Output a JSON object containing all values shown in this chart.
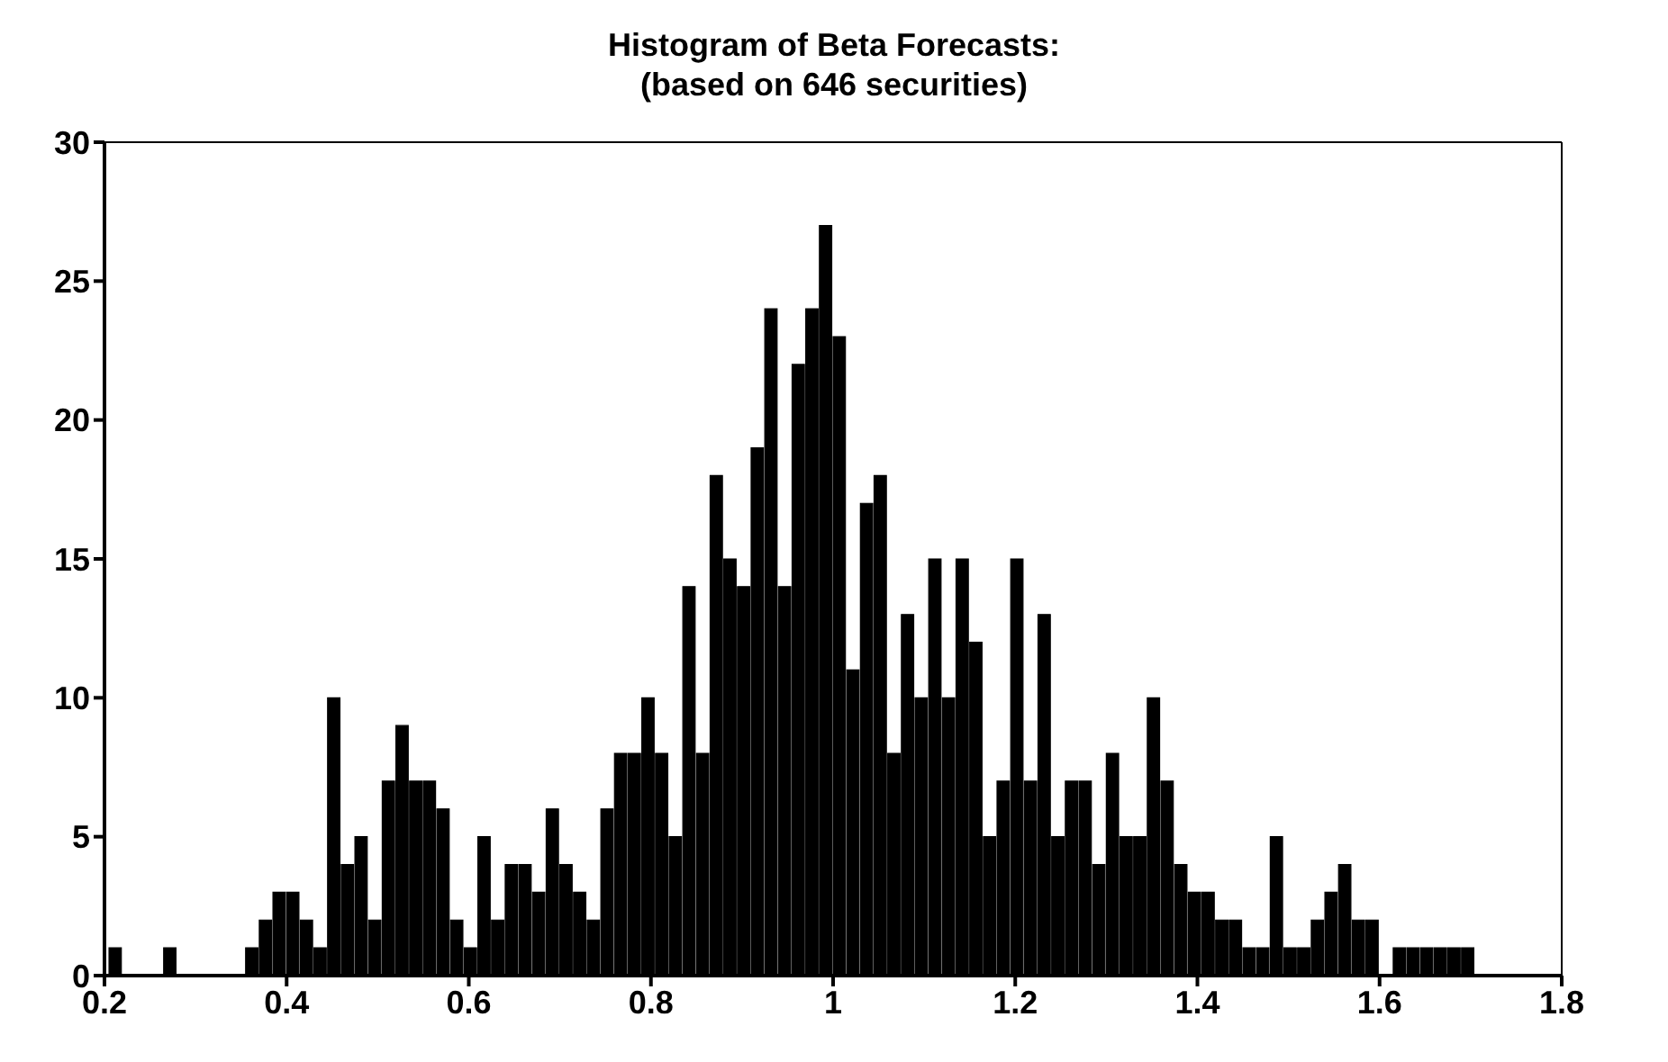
{
  "chart_data": {
    "type": "histogram",
    "title": "Histogram of Beta Forecasts:",
    "subtitle": "(based on 646 securities)",
    "bins": [
      0.205,
      0.22,
      0.235,
      0.25,
      0.265,
      0.28,
      0.295,
      0.31,
      0.325,
      0.34,
      0.355,
      0.37,
      0.385,
      0.4,
      0.415,
      0.43,
      0.445,
      0.46,
      0.475,
      0.49,
      0.505,
      0.52,
      0.535,
      0.55,
      0.565,
      0.58,
      0.595,
      0.61,
      0.625,
      0.64,
      0.655,
      0.67,
      0.685,
      0.7,
      0.715,
      0.73,
      0.745,
      0.76,
      0.775,
      0.79,
      0.805,
      0.82,
      0.835,
      0.85,
      0.865,
      0.88,
      0.895,
      0.91,
      0.925,
      0.94,
      0.955,
      0.97,
      0.985,
      1.0,
      1.015,
      1.03,
      1.045,
      1.06,
      1.075,
      1.09,
      1.105,
      1.12,
      1.135,
      1.15,
      1.165,
      1.18,
      1.195,
      1.21,
      1.225,
      1.24,
      1.255,
      1.27,
      1.285,
      1.3,
      1.315,
      1.33,
      1.345,
      1.36,
      1.375,
      1.39,
      1.405,
      1.42,
      1.435,
      1.45,
      1.465,
      1.48,
      1.495,
      1.51,
      1.525,
      1.54,
      1.555,
      1.57,
      1.585,
      1.6,
      1.615,
      1.63,
      1.645,
      1.66,
      1.675,
      1.69,
      1.705
    ],
    "values": [
      1,
      0,
      0,
      0,
      1,
      0,
      0,
      0,
      0,
      0,
      1,
      2,
      3,
      3,
      2,
      1,
      10,
      4,
      5,
      2,
      7,
      9,
      7,
      7,
      6,
      2,
      1,
      5,
      2,
      4,
      4,
      3,
      6,
      4,
      3,
      2,
      6,
      8,
      8,
      10,
      8,
      5,
      14,
      8,
      18,
      15,
      14,
      19,
      24,
      14,
      22,
      24,
      27,
      23,
      11,
      17,
      18,
      8,
      13,
      10,
      15,
      10,
      15,
      12,
      5,
      7,
      15,
      7,
      13,
      5,
      7,
      7,
      4,
      8,
      5,
      5,
      10,
      7,
      4,
      3,
      3,
      2,
      2,
      1,
      1,
      5,
      1,
      1,
      2,
      3,
      4,
      2,
      2,
      0,
      1,
      1,
      1,
      1,
      1,
      1
    ],
    "color": "#000000",
    "xlim": [
      0.2,
      1.8
    ],
    "xticks": [
      0.2,
      0.4,
      0.6,
      0.8,
      1,
      1.2,
      1.4,
      1.6,
      1.8
    ],
    "ylim": [
      0,
      30
    ],
    "yticks": [
      0,
      5,
      10,
      15,
      20,
      25,
      30
    ],
    "grid": false,
    "legend": false
  }
}
